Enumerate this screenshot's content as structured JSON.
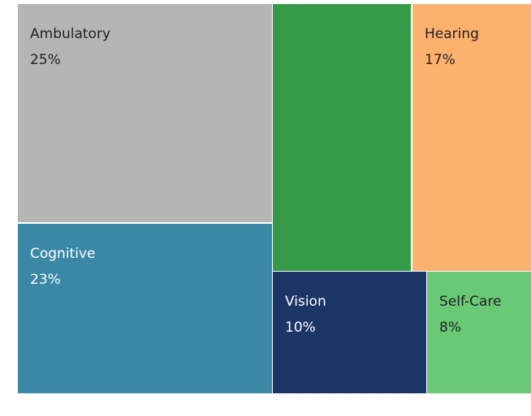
{
  "chart_data": {
    "type": "treemap",
    "categories": [
      "Ambulatory",
      "Cognitive",
      null,
      "Hearing",
      "Vision",
      "Self-Care"
    ],
    "values": [
      25,
      23,
      20,
      17,
      10,
      8
    ],
    "value_labels": [
      "25%",
      "23%",
      null,
      "17%",
      "10%",
      "8%"
    ],
    "colors": [
      "#b5b5b5",
      "#3a87a6",
      "#349a48",
      "#fcb26d",
      "#1b3566",
      "#69c977"
    ]
  }
}
